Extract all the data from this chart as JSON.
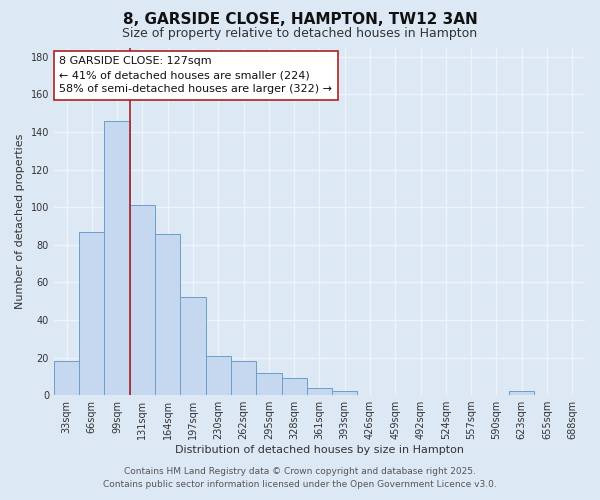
{
  "title": "8, GARSIDE CLOSE, HAMPTON, TW12 3AN",
  "subtitle": "Size of property relative to detached houses in Hampton",
  "xlabel": "Distribution of detached houses by size in Hampton",
  "ylabel": "Number of detached properties",
  "footnote1": "Contains HM Land Registry data © Crown copyright and database right 2025.",
  "footnote2": "Contains public sector information licensed under the Open Government Licence v3.0.",
  "bar_labels": [
    "33sqm",
    "66sqm",
    "99sqm",
    "131sqm",
    "164sqm",
    "197sqm",
    "230sqm",
    "262sqm",
    "295sqm",
    "328sqm",
    "361sqm",
    "393sqm",
    "426sqm",
    "459sqm",
    "492sqm",
    "524sqm",
    "557sqm",
    "590sqm",
    "623sqm",
    "655sqm",
    "688sqm"
  ],
  "bar_values": [
    18,
    87,
    146,
    101,
    86,
    52,
    21,
    18,
    12,
    9,
    4,
    2,
    0,
    0,
    0,
    0,
    0,
    0,
    2,
    0,
    0
  ],
  "bar_color": "#c5d8f0",
  "bar_edge_color": "#6a9ec8",
  "ylim": [
    0,
    185
  ],
  "yticks": [
    0,
    20,
    40,
    60,
    80,
    100,
    120,
    140,
    160,
    180
  ],
  "property_line_color": "#aa2222",
  "annotation_title": "8 GARSIDE CLOSE: 127sqm",
  "annotation_line1": "← 41% of detached houses are smaller (224)",
  "annotation_line2": "58% of semi-detached houses are larger (322) →",
  "annotation_box_color": "#ffffff",
  "annotation_box_edge": "#aa2222",
  "bg_color": "#dde8f5",
  "plot_bg_color": "#dde8f5",
  "grid_color": "#f0f4fa",
  "title_fontsize": 11,
  "subtitle_fontsize": 9,
  "label_fontsize": 8,
  "tick_fontsize": 7,
  "annotation_fontsize": 8,
  "footnote_fontsize": 6.5
}
